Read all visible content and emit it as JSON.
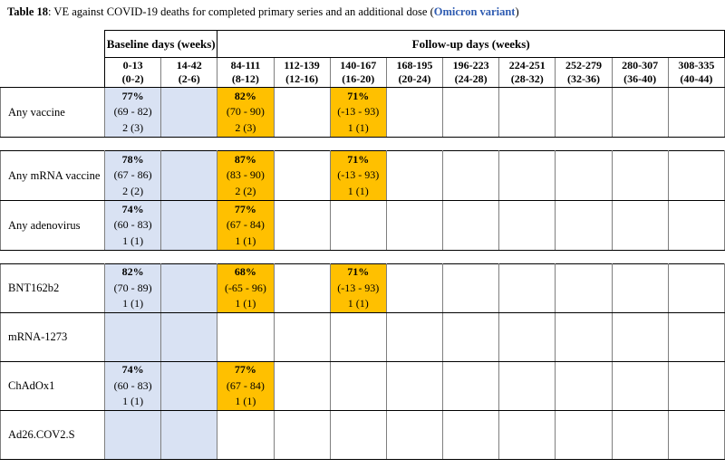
{
  "title": {
    "label": "Table 18",
    "text": ": VE against COVID-19 deaths for completed primary series and an additional dose (",
    "variant": "Omicron variant",
    "suffix": ")"
  },
  "colors": {
    "baseline_bg": "#D9E2F3",
    "highlight_bg": "#FFC000",
    "link_blue": "#2E5BB1",
    "grid_gray": "#7F7F7F",
    "grid_black": "#000000"
  },
  "header": {
    "baseline_label": "Baseline days (weeks)",
    "followup_label": "Follow-up days (weeks)",
    "columns": [
      {
        "days": "0-13",
        "weeks": "(0-2)"
      },
      {
        "days": "14-42",
        "weeks": "(2-6)"
      },
      {
        "days": "84-111",
        "weeks": "(8-12)"
      },
      {
        "days": "112-139",
        "weeks": "(12-16)"
      },
      {
        "days": "140-167",
        "weeks": "(16-20)"
      },
      {
        "days": "168-195",
        "weeks": "(20-24)"
      },
      {
        "days": "196-223",
        "weeks": "(24-28)"
      },
      {
        "days": "224-251",
        "weeks": "(28-32)"
      },
      {
        "days": "252-279",
        "weeks": "(32-36)"
      },
      {
        "days": "280-307",
        "weeks": "(36-40)"
      },
      {
        "days": "308-335",
        "weeks": "(40-44)"
      }
    ]
  },
  "sections": [
    {
      "rows": [
        {
          "label": "Any vaccine",
          "cells": [
            {
              "bg": "baseline",
              "ve": "77%",
              "ci": "(69 - 82)",
              "n": "2 (3)"
            },
            {
              "bg": "baseline"
            },
            {
              "bg": "orange",
              "ve": "82%",
              "ci": "(70 - 90)",
              "n": "2 (3)"
            },
            {},
            {
              "bg": "orange",
              "ve": "71%",
              "ci": "(-13 - 93)",
              "n": "1 (1)"
            },
            {},
            {},
            {},
            {},
            {},
            {}
          ]
        }
      ]
    },
    {
      "rows": [
        {
          "label": "Any mRNA vaccine",
          "cells": [
            {
              "bg": "baseline",
              "ve": "78%",
              "ci": "(67 - 86)",
              "n": "2 (2)"
            },
            {
              "bg": "baseline"
            },
            {
              "bg": "orange",
              "ve": "87%",
              "ci": "(83 - 90)",
              "n": "2 (2)"
            },
            {},
            {
              "bg": "orange",
              "ve": "71%",
              "ci": "(-13 - 93)",
              "n": "1 (1)"
            },
            {},
            {},
            {},
            {},
            {},
            {}
          ]
        },
        {
          "label": "Any adenovirus",
          "cells": [
            {
              "bg": "baseline",
              "ve": "74%",
              "ci": "(60 - 83)",
              "n": "1 (1)"
            },
            {
              "bg": "baseline"
            },
            {
              "bg": "orange",
              "ve": "77%",
              "ci": "(67 - 84)",
              "n": "1 (1)"
            },
            {},
            {},
            {},
            {},
            {},
            {},
            {},
            {}
          ]
        }
      ]
    },
    {
      "rows": [
        {
          "label": "BNT162b2",
          "cells": [
            {
              "bg": "baseline",
              "ve": "82%",
              "ci": "(70 - 89)",
              "n": "1 (1)"
            },
            {
              "bg": "baseline"
            },
            {
              "bg": "orange",
              "ve": "68%",
              "ci": "(-65 - 96)",
              "n": "1 (1)"
            },
            {},
            {
              "bg": "orange",
              "ve": "71%",
              "ci": "(-13 - 93)",
              "n": "1 (1)"
            },
            {},
            {},
            {},
            {},
            {},
            {}
          ]
        },
        {
          "label": "mRNA-1273",
          "cells": [
            {
              "bg": "baseline"
            },
            {
              "bg": "baseline"
            },
            {},
            {},
            {},
            {},
            {},
            {},
            {},
            {},
            {}
          ]
        },
        {
          "label": "ChAdOx1",
          "cells": [
            {
              "bg": "baseline",
              "ve": "74%",
              "ci": "(60 - 83)",
              "n": "1 (1)"
            },
            {
              "bg": "baseline"
            },
            {
              "bg": "orange",
              "ve": "77%",
              "ci": "(67 - 84)",
              "n": "1 (1)"
            },
            {},
            {},
            {},
            {},
            {},
            {},
            {},
            {}
          ]
        },
        {
          "label": "Ad26.COV2.S",
          "cells": [
            {
              "bg": "baseline"
            },
            {
              "bg": "baseline"
            },
            {},
            {},
            {},
            {},
            {},
            {},
            {},
            {},
            {}
          ]
        }
      ]
    }
  ]
}
